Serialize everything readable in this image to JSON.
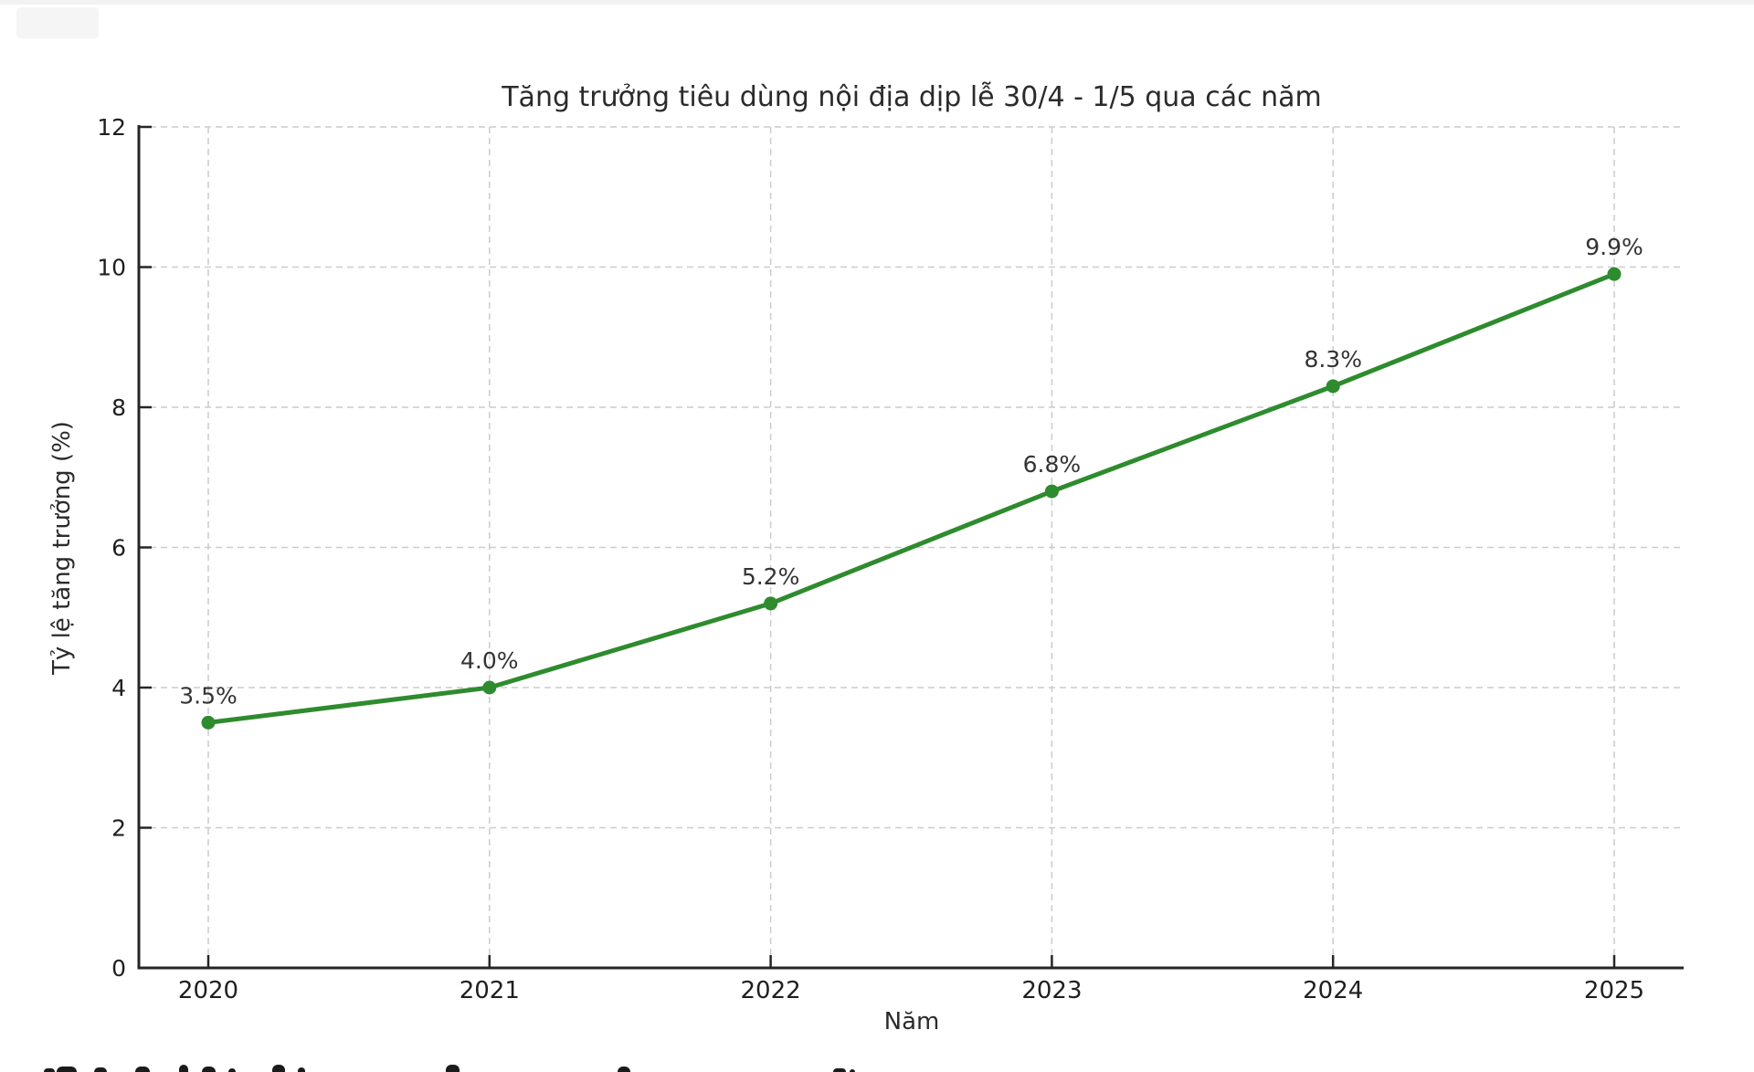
{
  "window": {
    "background": "#ffffff",
    "top_strip_color": "#f2f2f2"
  },
  "chart_data": {
    "type": "line",
    "title": "Tăng trưởng tiêu dùng nội địa dịp lễ 30/4 - 1/5 qua các năm",
    "xlabel": "Năm",
    "ylabel": "Tỷ lệ tăng trưởng (%)",
    "categories": [
      "2020",
      "2021",
      "2022",
      "2023",
      "2024",
      "2025"
    ],
    "values": [
      3.5,
      4.0,
      5.2,
      6.8,
      8.3,
      9.9
    ],
    "point_labels": [
      "3.5%",
      "4.0%",
      "5.2%",
      "6.8%",
      "8.3%",
      "9.9%"
    ],
    "ylim": [
      0,
      12
    ],
    "yticks": [
      0,
      2,
      4,
      6,
      8,
      10,
      12
    ],
    "ytick_labels": [
      "0",
      "2",
      "4",
      "6",
      "8",
      "10",
      "12"
    ],
    "line_color": "#2e8b2e",
    "marker": "circle",
    "grid": "dashed-both-axes",
    "grid_color": "#cccccc",
    "axis_color": "#262626",
    "tick_label_color": "#1f1f1f",
    "point_label_color": "#333333",
    "legend_position": "none"
  },
  "artifacts": {
    "bottom_cutoff_marks": [
      {
        "x": 48,
        "w": 12,
        "h": 4
      },
      {
        "x": 62,
        "w": 22,
        "h": 6
      },
      {
        "x": 103,
        "w": 14,
        "h": 5
      },
      {
        "x": 148,
        "w": 16,
        "h": 6
      },
      {
        "x": 196,
        "w": 10,
        "h": 8
      },
      {
        "x": 221,
        "w": 15,
        "h": 6
      },
      {
        "x": 250,
        "w": 8,
        "h": 4
      },
      {
        "x": 298,
        "w": 14,
        "h": 8
      },
      {
        "x": 326,
        "w": 8,
        "h": 5
      },
      {
        "x": 488,
        "w": 15,
        "h": 8
      },
      {
        "x": 676,
        "w": 14,
        "h": 6
      },
      {
        "x": 912,
        "w": 14,
        "h": 4
      },
      {
        "x": 930,
        "w": 6,
        "h": 3
      }
    ]
  }
}
